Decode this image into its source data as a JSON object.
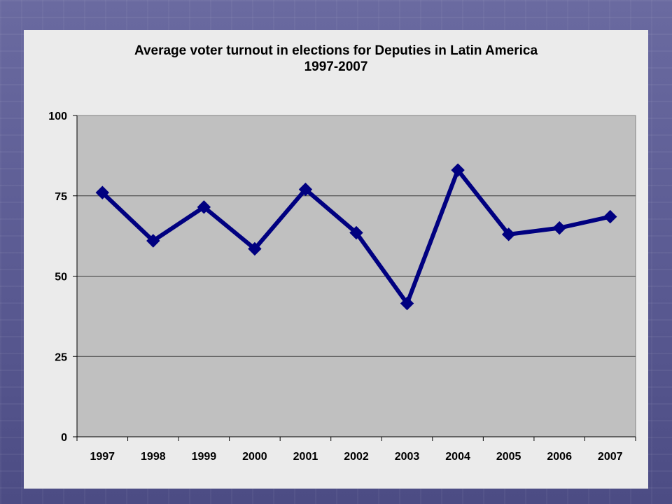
{
  "chart_data": {
    "type": "line",
    "title": "Average voter turnout in elections for Deputies in Latin America",
    "subtitle": "1997-2007",
    "xlabel": "",
    "ylabel": "",
    "categories": [
      "1997",
      "1998",
      "1999",
      "2000",
      "2001",
      "2002",
      "2003",
      "2004",
      "2005",
      "2006",
      "2007"
    ],
    "series": [
      {
        "values": [
          76,
          61,
          71.5,
          58.5,
          77,
          63.5,
          41.5,
          83,
          63,
          65,
          68.5
        ],
        "color": "#000080",
        "marker": "diamond"
      }
    ],
    "ylim": [
      0,
      100
    ],
    "yticks": [
      0,
      25,
      50,
      75,
      100
    ],
    "grid": true,
    "legend": "none",
    "plot_background": "#c0c0c0"
  }
}
